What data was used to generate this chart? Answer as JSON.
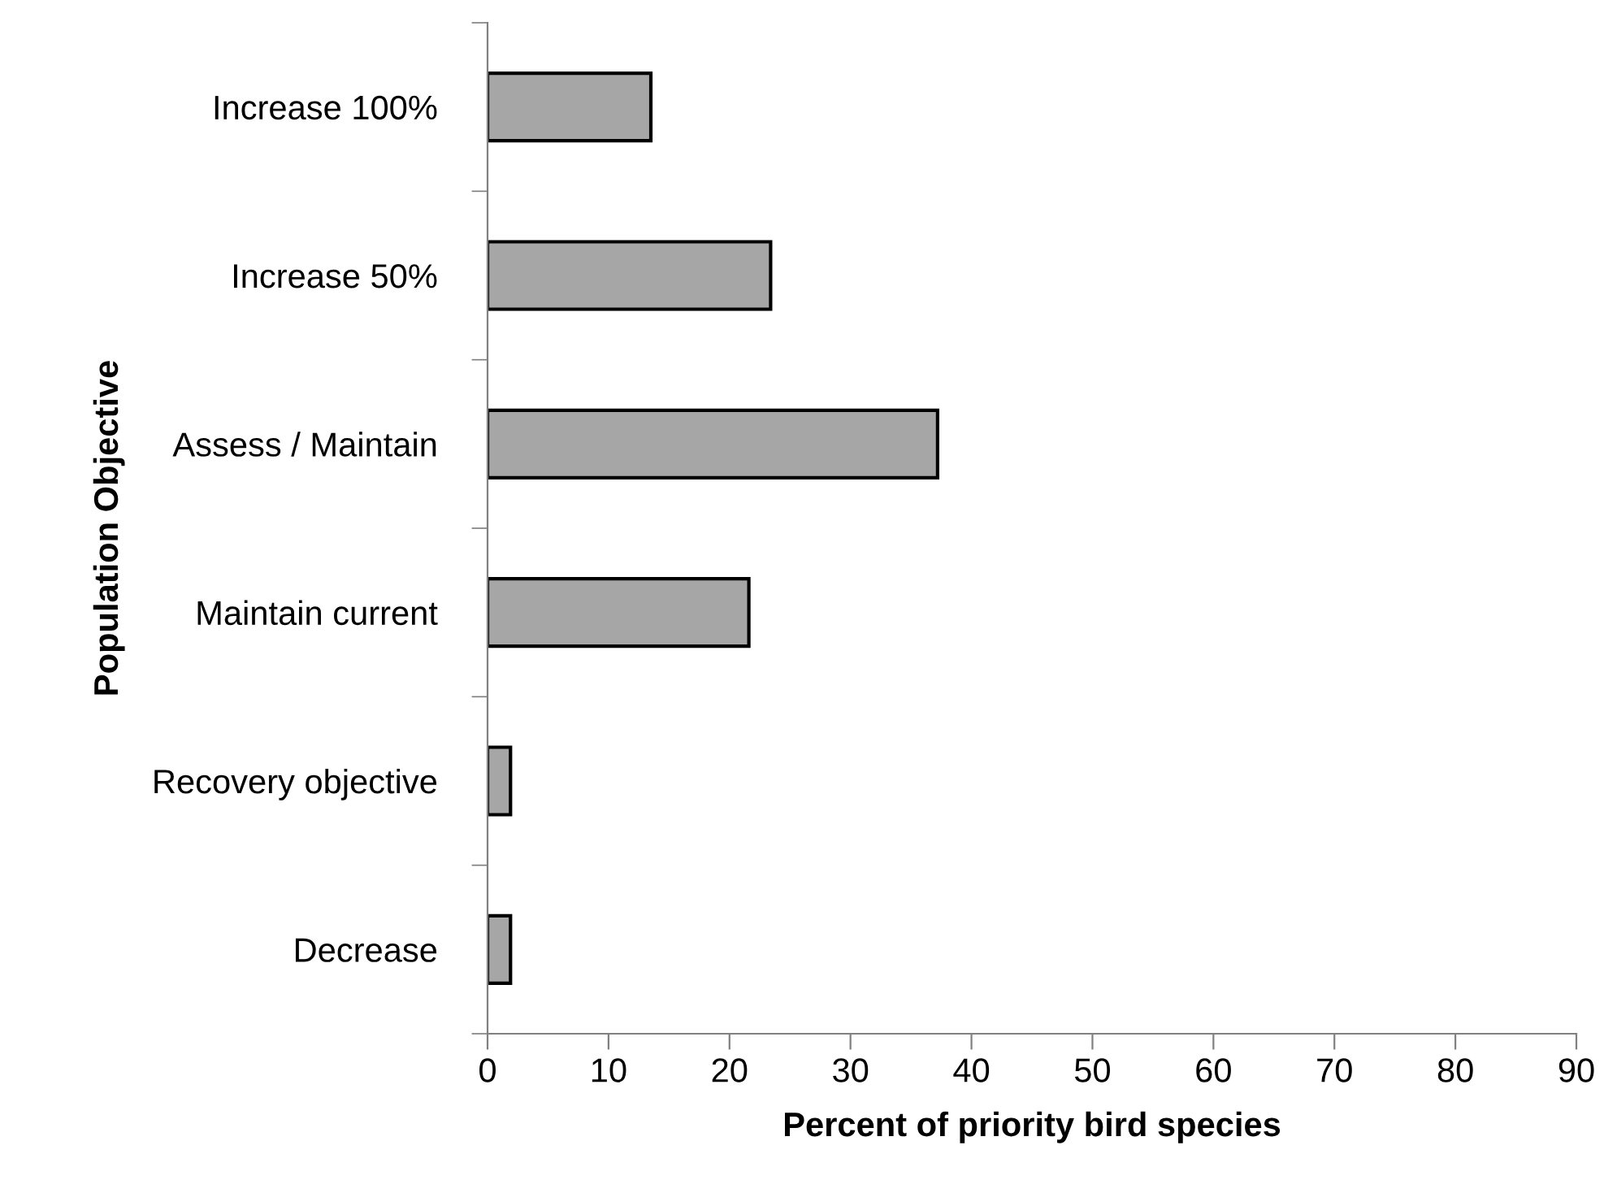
{
  "chart_data": {
    "type": "bar",
    "orientation": "horizontal",
    "categories": [
      "Increase 100%",
      "Increase 50%",
      "Assess / Maintain",
      "Maintain current",
      "Recovery objective",
      "Decrease"
    ],
    "values": [
      13.5,
      23.4,
      37.2,
      21.6,
      1.9,
      1.9
    ],
    "color": "#a6a6a6",
    "xlabel": "Percent of priority bird species",
    "ylabel": "Population Objective",
    "xlim": [
      0,
      90
    ],
    "xticks": [
      0,
      10,
      20,
      30,
      40,
      50,
      60,
      70,
      80,
      90
    ],
    "grid": false,
    "legend": false
  }
}
